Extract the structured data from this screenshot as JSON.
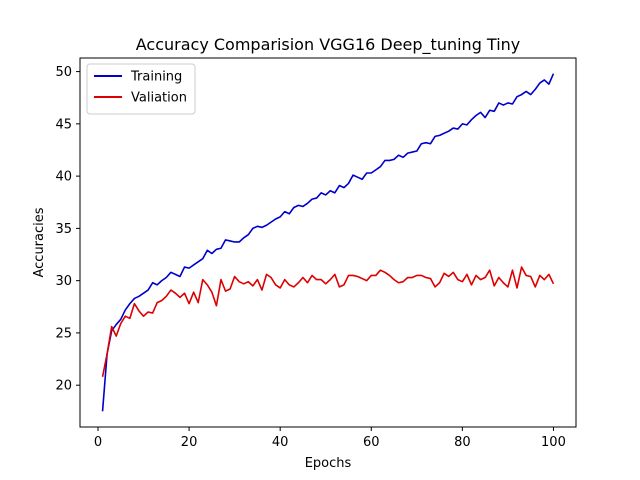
{
  "chart_data": {
    "type": "line",
    "title": "Accuracy Comparision VGG16 Deep_tuning Tiny",
    "xlabel": "Epochs",
    "ylabel": "Accuracies",
    "xlim": [
      -3.95,
      104.95
    ],
    "ylim": [
      16.0,
      51.3
    ],
    "xticks": [
      0,
      20,
      40,
      60,
      80,
      100
    ],
    "yticks": [
      20,
      25,
      30,
      35,
      40,
      45,
      50
    ],
    "grid": false,
    "legend": "top-left",
    "x": [
      1,
      2,
      3,
      4,
      5,
      6,
      7,
      8,
      9,
      10,
      11,
      12,
      13,
      14,
      15,
      16,
      17,
      18,
      19,
      20,
      21,
      22,
      23,
      24,
      25,
      26,
      27,
      28,
      29,
      30,
      31,
      32,
      33,
      34,
      35,
      36,
      37,
      38,
      39,
      40,
      41,
      42,
      43,
      44,
      45,
      46,
      47,
      48,
      49,
      50,
      51,
      52,
      53,
      54,
      55,
      56,
      57,
      58,
      59,
      60,
      61,
      62,
      63,
      64,
      65,
      66,
      67,
      68,
      69,
      70,
      71,
      72,
      73,
      74,
      75,
      76,
      77,
      78,
      79,
      80,
      81,
      82,
      83,
      84,
      85,
      86,
      87,
      88,
      89,
      90,
      91,
      92,
      93,
      94,
      95,
      96,
      97,
      98,
      99,
      100
    ],
    "series": [
      {
        "name": "Training",
        "color": "#0000cc",
        "values": [
          17.5,
          23.0,
          25.2,
          25.8,
          26.3,
          27.2,
          27.8,
          28.3,
          28.5,
          28.8,
          29.1,
          29.8,
          29.6,
          30.0,
          30.3,
          30.8,
          30.6,
          30.4,
          31.3,
          31.2,
          31.5,
          31.8,
          32.1,
          32.9,
          32.6,
          33.0,
          33.1,
          33.9,
          33.8,
          33.7,
          33.7,
          34.1,
          34.4,
          35.0,
          35.2,
          35.1,
          35.3,
          35.6,
          35.9,
          36.1,
          36.6,
          36.4,
          37.0,
          37.2,
          37.1,
          37.4,
          37.8,
          37.9,
          38.4,
          38.2,
          38.6,
          38.4,
          39.1,
          38.9,
          39.3,
          40.1,
          39.9,
          39.7,
          40.3,
          40.3,
          40.6,
          40.9,
          41.5,
          41.5,
          41.6,
          42.0,
          41.8,
          42.2,
          42.3,
          42.4,
          43.1,
          43.2,
          43.1,
          43.8,
          43.9,
          44.1,
          44.3,
          44.6,
          44.5,
          45.0,
          44.9,
          45.4,
          45.8,
          46.1,
          45.6,
          46.3,
          46.2,
          47.0,
          46.8,
          47.0,
          46.9,
          47.6,
          47.8,
          48.1,
          47.8,
          48.3,
          48.9,
          49.2,
          48.8,
          49.8
        ]
      },
      {
        "name": "Valiation",
        "color": "#dd0000",
        "values": [
          20.8,
          23.0,
          25.6,
          24.7,
          25.9,
          26.6,
          26.4,
          27.8,
          27.1,
          26.6,
          27.0,
          26.9,
          27.9,
          28.1,
          28.5,
          29.1,
          28.8,
          28.4,
          28.8,
          27.8,
          28.9,
          27.9,
          30.1,
          29.6,
          28.9,
          27.6,
          30.1,
          29.0,
          29.2,
          30.4,
          29.9,
          29.7,
          29.9,
          29.5,
          30.1,
          29.1,
          30.6,
          30.3,
          29.6,
          29.3,
          30.1,
          29.6,
          29.4,
          29.8,
          30.3,
          29.8,
          30.5,
          30.1,
          30.1,
          29.7,
          30.1,
          30.6,
          29.4,
          29.6,
          30.5,
          30.5,
          30.4,
          30.2,
          30.0,
          30.5,
          30.5,
          31.0,
          30.8,
          30.5,
          30.1,
          29.8,
          29.9,
          30.3,
          30.3,
          30.5,
          30.5,
          30.3,
          30.2,
          29.4,
          29.8,
          30.7,
          30.4,
          30.8,
          30.1,
          29.9,
          30.6,
          29.6,
          30.5,
          30.1,
          30.3,
          31.0,
          29.5,
          30.3,
          29.8,
          29.4,
          31.0,
          29.3,
          31.3,
          30.5,
          30.4,
          29.4,
          30.5,
          30.1,
          30.6,
          29.7
        ]
      }
    ]
  }
}
